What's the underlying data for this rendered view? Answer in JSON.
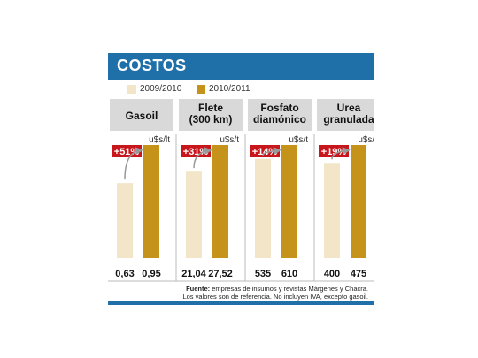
{
  "title": "COSTOS",
  "legend": [
    {
      "label": "2009/2010",
      "color": "#f3e6c8"
    },
    {
      "label": "2010/2011",
      "color": "#c5921a"
    }
  ],
  "colors": {
    "header": "#1f6fa8",
    "badge": "#c8161d",
    "category_box": "#d9d9d9",
    "old": "#f3e6c8",
    "new": "#c5921a"
  },
  "chart_data": {
    "type": "bar",
    "categories": [
      "Gasoil",
      "Flete (300 km)",
      "Fosfato diamónico",
      "Urea granulada"
    ],
    "category_lines": [
      [
        "Gasoil"
      ],
      [
        "Flete",
        "(300 km)"
      ],
      [
        "Fosfato",
        "diamónico"
      ],
      [
        "Urea",
        "granulada"
      ]
    ],
    "units": [
      "u$s/lt",
      "u$s/t",
      "u$s/t",
      "u$s/t"
    ],
    "changes": [
      "+51%",
      "+31%",
      "+14%",
      "+19%"
    ],
    "series": [
      {
        "name": "2009/2010",
        "values": [
          0.63,
          21.04,
          535,
          400
        ],
        "labels": [
          "0,63",
          "21,04",
          "535",
          "400"
        ]
      },
      {
        "name": "2010/2011",
        "values": [
          0.95,
          27.52,
          610,
          475
        ],
        "labels": [
          "0,95",
          "27,52",
          "610",
          "475"
        ]
      }
    ]
  },
  "source": {
    "label": "Fuente:",
    "text": "empresas de insumos y revistas Márgenes y Chacra.",
    "note": "Los valores son de referencia. No incluyen IVA, excepto gasoil."
  }
}
